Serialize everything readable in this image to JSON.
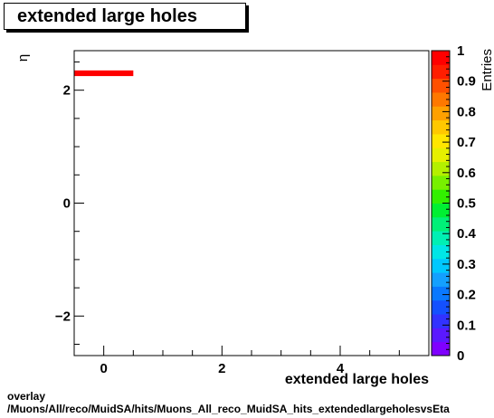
{
  "chart_data": {
    "type": "heatmap",
    "title": "extended large holes",
    "xlabel": "extended large holes",
    "ylabel": "η",
    "zlabel": "Entries",
    "xlim": [
      -0.5,
      5.5
    ],
    "ylim": [
      -2.7,
      2.7
    ],
    "x_major_ticks": [
      0,
      2,
      4
    ],
    "y_major_ticks": [
      -2,
      0,
      2
    ],
    "z_ticks": [
      0,
      0.1,
      0.2,
      0.3,
      0.4,
      0.5,
      0.6,
      0.7,
      0.8,
      0.9,
      1
    ],
    "z_tick_labels": [
      "0",
      "0.1",
      "0.2",
      "0.3",
      "0.4",
      "0.5",
      "0.6",
      "0.7",
      "0.8",
      "0.9",
      "1"
    ],
    "zlim": [
      0,
      1
    ],
    "cells": [
      {
        "x0": -0.5,
        "x1": 0.5,
        "y0": 2.25,
        "y1": 2.35,
        "z": 1
      }
    ],
    "palette": [
      "#7f00ff",
      "#5a19ff",
      "#3232ff",
      "#1450ff",
      "#0a78ff",
      "#14a0ff",
      "#00c8ff",
      "#00e6e6",
      "#00f0b4",
      "#00f078",
      "#00f032",
      "#32f000",
      "#78f000",
      "#b4f000",
      "#e6f000",
      "#ffe600",
      "#ffc800",
      "#ffa000",
      "#ff7800",
      "#ff5000",
      "#ff1e00",
      "#ff0000"
    ]
  },
  "footer": {
    "line1": "overlay",
    "line2": "/Muons/All/reco/MuidSA/hits/Muons_All_reco_MuidSA_hits_extendedlargeholesvsEta"
  }
}
